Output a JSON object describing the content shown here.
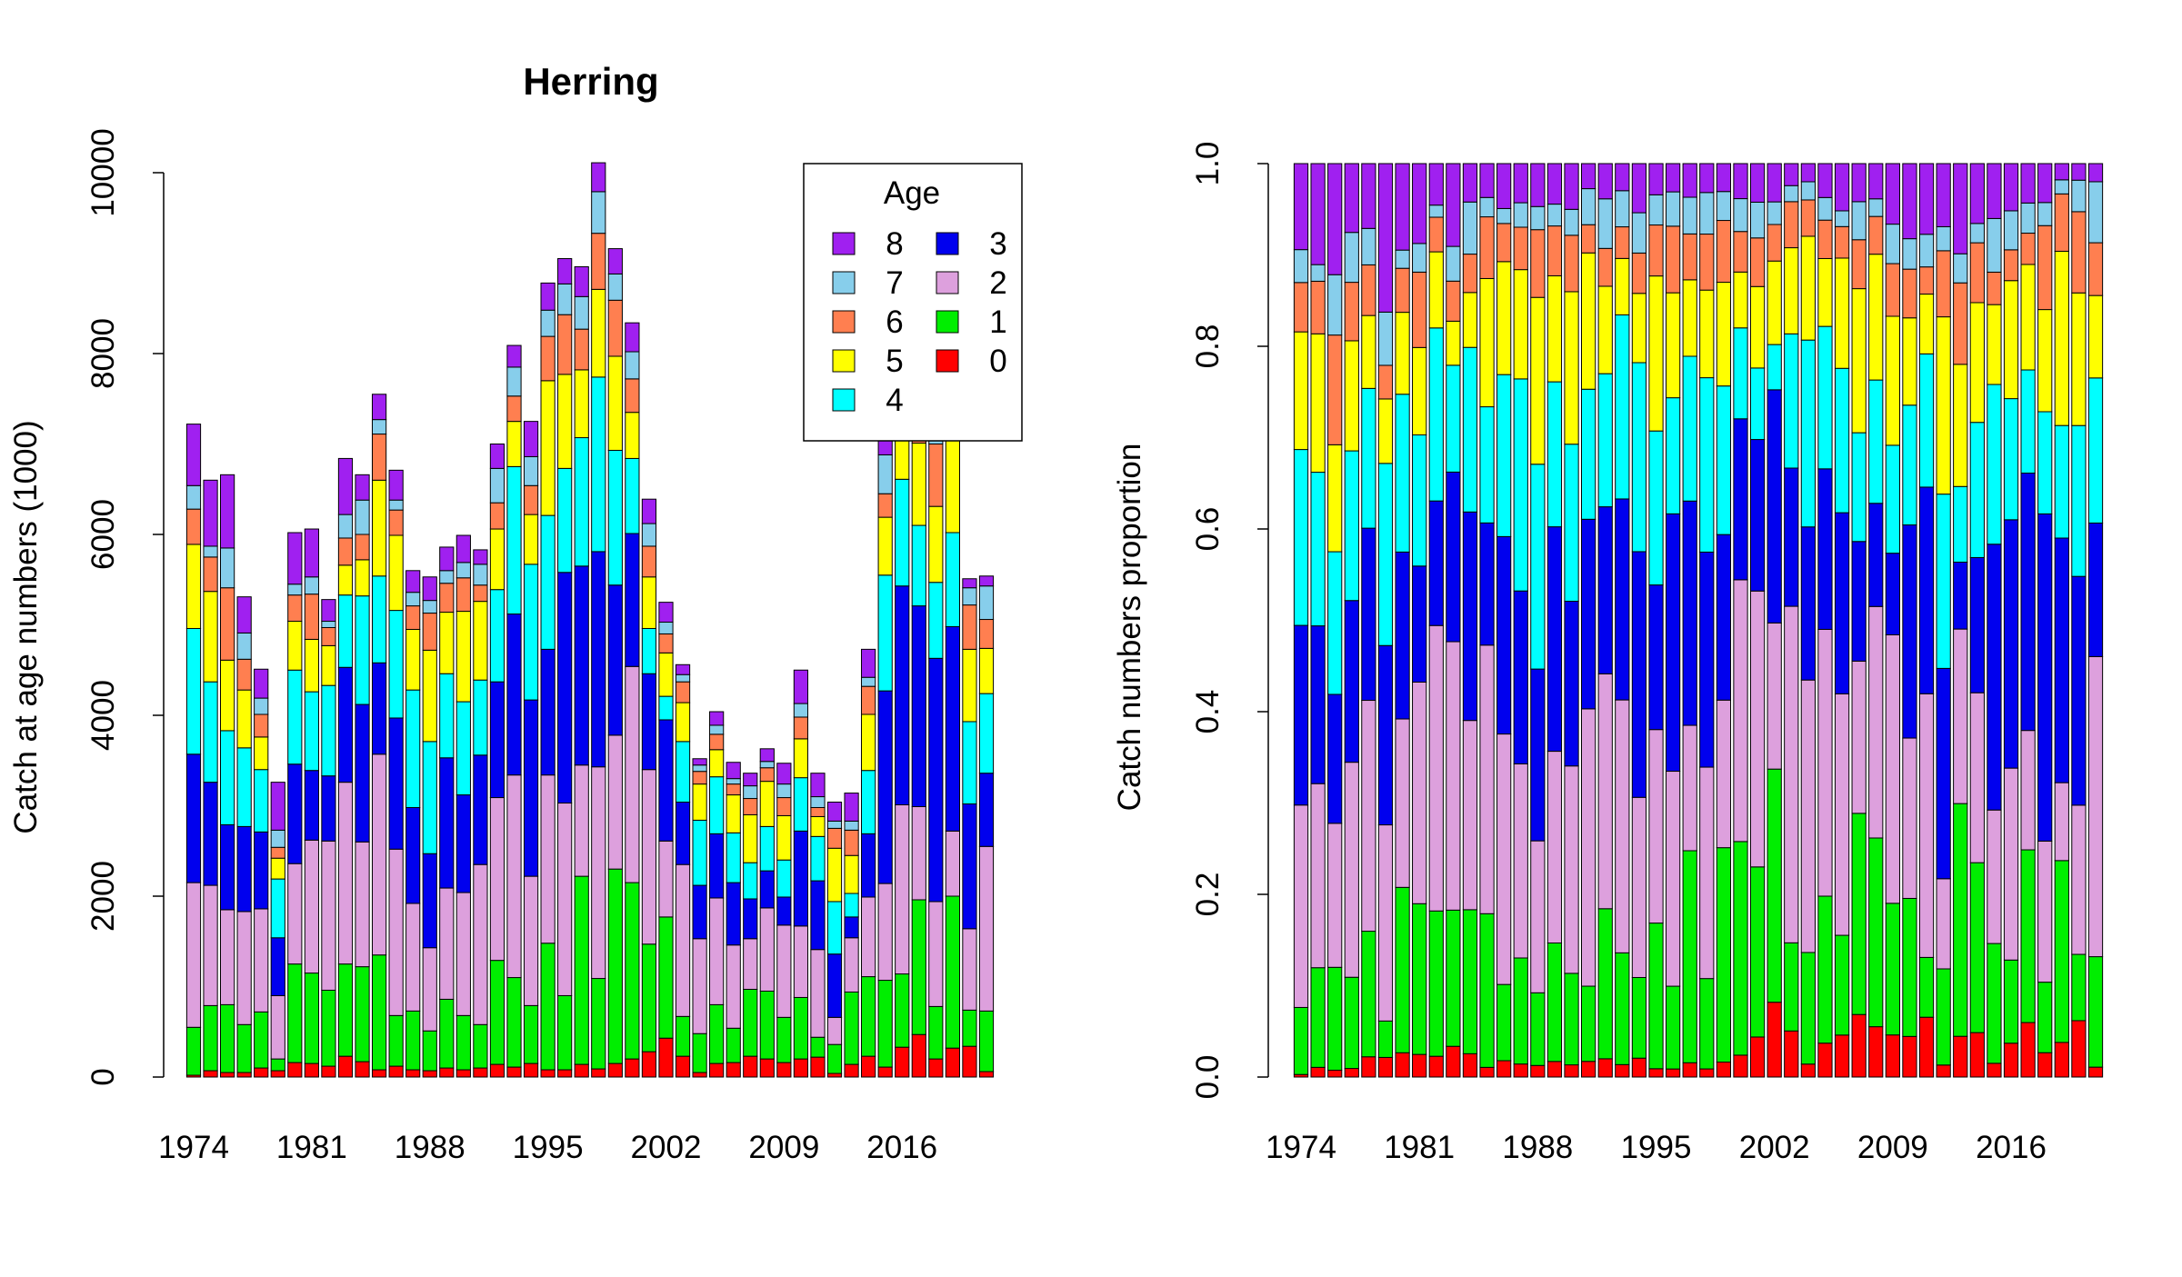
{
  "colors": {
    "age_0": "#ff0000",
    "age_1": "#00ee00",
    "age_2": "#dda0dd",
    "age_3": "#0000ee",
    "age_4": "#00ffff",
    "age_5": "#ffff00",
    "age_6": "#ff7f50",
    "age_7": "#87ceeb",
    "age_8": "#a020f0"
  },
  "chart_data": [
    {
      "type": "bar",
      "stacked": true,
      "title": "Herring",
      "xlabel": "",
      "ylabel": "Catch at age numbers (1000)",
      "ylim": [
        0,
        10000
      ],
      "yticks": [
        0,
        2000,
        4000,
        6000,
        8000,
        10000
      ],
      "xtick_labels": [
        "1974",
        "1981",
        "1988",
        "1995",
        "2002",
        "2009",
        "2016"
      ],
      "legend": {
        "title": "Age",
        "placement": "top-right",
        "entries": [
          "8",
          "7",
          "6",
          "5",
          "4",
          "3",
          "2",
          "1",
          "0"
        ]
      },
      "x": [
        1974,
        1975,
        1976,
        1977,
        1978,
        1979,
        1980,
        1981,
        1982,
        1983,
        1984,
        1985,
        1986,
        1987,
        1988,
        1989,
        1990,
        1991,
        1992,
        1993,
        1994,
        1995,
        1996,
        1997,
        1998,
        1999,
        2000,
        2001,
        2002,
        2003,
        2004,
        2005,
        2006,
        2007,
        2008,
        2009,
        2010,
        2011,
        2012,
        2013,
        2014,
        2015,
        2016,
        2017,
        2018,
        2019,
        2020,
        2021
      ],
      "series": [
        {
          "name": "0",
          "values": [
            20,
            70,
            50,
            50,
            100,
            70,
            160,
            150,
            120,
            230,
            170,
            80,
            120,
            80,
            70,
            100,
            80,
            100,
            140,
            110,
            150,
            80,
            80,
            140,
            90,
            150,
            200,
            280,
            430,
            230,
            50,
            150,
            160,
            230,
            200,
            160,
            200,
            220,
            40,
            140,
            230,
            110,
            330,
            470,
            200,
            320,
            340,
            60
          ]
        },
        {
          "name": "1",
          "values": [
            530,
            720,
            750,
            530,
            620,
            130,
            1090,
            1000,
            840,
            1020,
            1050,
            1270,
            560,
            650,
            440,
            760,
            600,
            480,
            1150,
            990,
            640,
            1400,
            820,
            2080,
            1000,
            2150,
            1950,
            1190,
            1340,
            440,
            430,
            650,
            380,
            740,
            750,
            500,
            680,
            220,
            320,
            800,
            880,
            960,
            810,
            1490,
            580,
            1680,
            400,
            670
          ]
        },
        {
          "name": "2",
          "values": [
            1600,
            1330,
            1050,
            1250,
            1140,
            700,
            1110,
            1470,
            1650,
            2010,
            1380,
            2220,
            1840,
            1190,
            920,
            1230,
            1360,
            1770,
            1800,
            2240,
            1430,
            1860,
            2130,
            1230,
            2340,
            1480,
            2390,
            1930,
            840,
            1680,
            1050,
            1180,
            920,
            560,
            920,
            1020,
            790,
            970,
            300,
            600,
            880,
            1070,
            1870,
            1030,
            1160,
            720,
            900,
            1820
          ]
        },
        {
          "name": "3",
          "values": [
            1420,
            1140,
            940,
            940,
            850,
            640,
            1100,
            770,
            720,
            1270,
            1520,
            1010,
            1450,
            1060,
            1040,
            1440,
            1080,
            1210,
            1280,
            1780,
            1950,
            1390,
            2550,
            2200,
            2380,
            1660,
            1470,
            1060,
            1340,
            690,
            590,
            710,
            690,
            440,
            410,
            310,
            1050,
            760,
            700,
            230,
            700,
            2130,
            2420,
            2220,
            2690,
            2260,
            1380,
            810
          ]
        },
        {
          "name": "4",
          "values": [
            1390,
            1110,
            1040,
            870,
            690,
            650,
            1040,
            870,
            1000,
            800,
            1200,
            960,
            1190,
            1300,
            1240,
            930,
            1030,
            830,
            1020,
            1630,
            1500,
            1480,
            1150,
            1420,
            1930,
            1490,
            830,
            500,
            260,
            670,
            720,
            630,
            550,
            400,
            490,
            410,
            590,
            490,
            580,
            260,
            700,
            1280,
            1180,
            890,
            840,
            1040,
            910,
            880
          ]
        },
        {
          "name": "5",
          "values": [
            930,
            1000,
            780,
            640,
            360,
            230,
            540,
            580,
            440,
            330,
            400,
            1060,
            830,
            670,
            1010,
            680,
            1000,
            870,
            670,
            500,
            550,
            1490,
            1040,
            750,
            970,
            1040,
            510,
            570,
            480,
            430,
            400,
            300,
            420,
            530,
            500,
            490,
            430,
            220,
            590,
            420,
            620,
            640,
            1150,
            910,
            840,
            1610,
            800,
            500
          ]
        },
        {
          "name": "6",
          "values": [
            390,
            380,
            800,
            340,
            250,
            120,
            290,
            500,
            200,
            300,
            280,
            510,
            280,
            260,
            410,
            320,
            370,
            180,
            290,
            280,
            320,
            490,
            660,
            450,
            620,
            620,
            370,
            340,
            210,
            230,
            140,
            170,
            120,
            180,
            150,
            200,
            240,
            100,
            220,
            280,
            310,
            260,
            300,
            270,
            690,
            530,
            490,
            320
          ]
        },
        {
          "name": "7",
          "values": [
            260,
            120,
            440,
            290,
            180,
            190,
            120,
            190,
            70,
            260,
            380,
            160,
            110,
            150,
            140,
            140,
            170,
            230,
            380,
            320,
            320,
            290,
            340,
            360,
            460,
            290,
            300,
            250,
            130,
            80,
            70,
            100,
            60,
            140,
            70,
            150,
            150,
            120,
            80,
            100,
            100,
            430,
            380,
            260,
            190,
            130,
            190,
            370
          ]
        },
        {
          "name": "8",
          "values": [
            680,
            730,
            810,
            400,
            320,
            530,
            570,
            530,
            240,
            620,
            280,
            280,
            330,
            240,
            260,
            260,
            300,
            160,
            270,
            240,
            390,
            300,
            280,
            330,
            320,
            280,
            320,
            270,
            220,
            110,
            70,
            150,
            180,
            140,
            140,
            230,
            370,
            260,
            210,
            310,
            310,
            440,
            460,
            340,
            320,
            150,
            100,
            110
          ]
        }
      ]
    },
    {
      "type": "bar",
      "stacked": true,
      "title": "",
      "xlabel": "",
      "ylabel": "Catch numbers proportion",
      "ylim": [
        0,
        1
      ],
      "yticks": [
        0.0,
        0.2,
        0.4,
        0.6,
        0.8,
        1.0
      ],
      "ytick_labels": [
        "0.0",
        "0.2",
        "0.4",
        "0.6",
        "0.8",
        "1.0"
      ],
      "xtick_labels": [
        "1974",
        "1981",
        "1988",
        "1995",
        "2002",
        "2009",
        "2016"
      ],
      "note": "stacked proportions of the same series shown in the left panel"
    }
  ]
}
